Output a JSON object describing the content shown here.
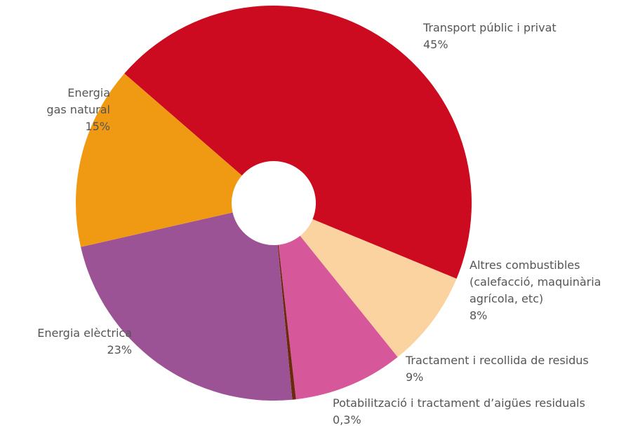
{
  "chart_data": {
    "type": "pie",
    "categories": [
      "Transport públic i privat",
      "Altres combustibles\n(calefacció, maquinària\nagrícola, etc)",
      "Tractament i recollida de residus",
      "Potabilització i tractament d’aigües residuals",
      "Energia elèctrica",
      "Energia\ngas natural"
    ],
    "values": [
      45,
      8,
      9,
      0.3,
      23,
      15
    ],
    "value_labels": [
      "45%",
      "8%",
      "9%",
      "0,3%",
      "23%",
      "15%"
    ],
    "colors": [
      "#cc0a20",
      "#fbd3a0",
      "#d6579a",
      "#6b2a0e",
      "#9c5396",
      "#f09a14"
    ]
  }
}
